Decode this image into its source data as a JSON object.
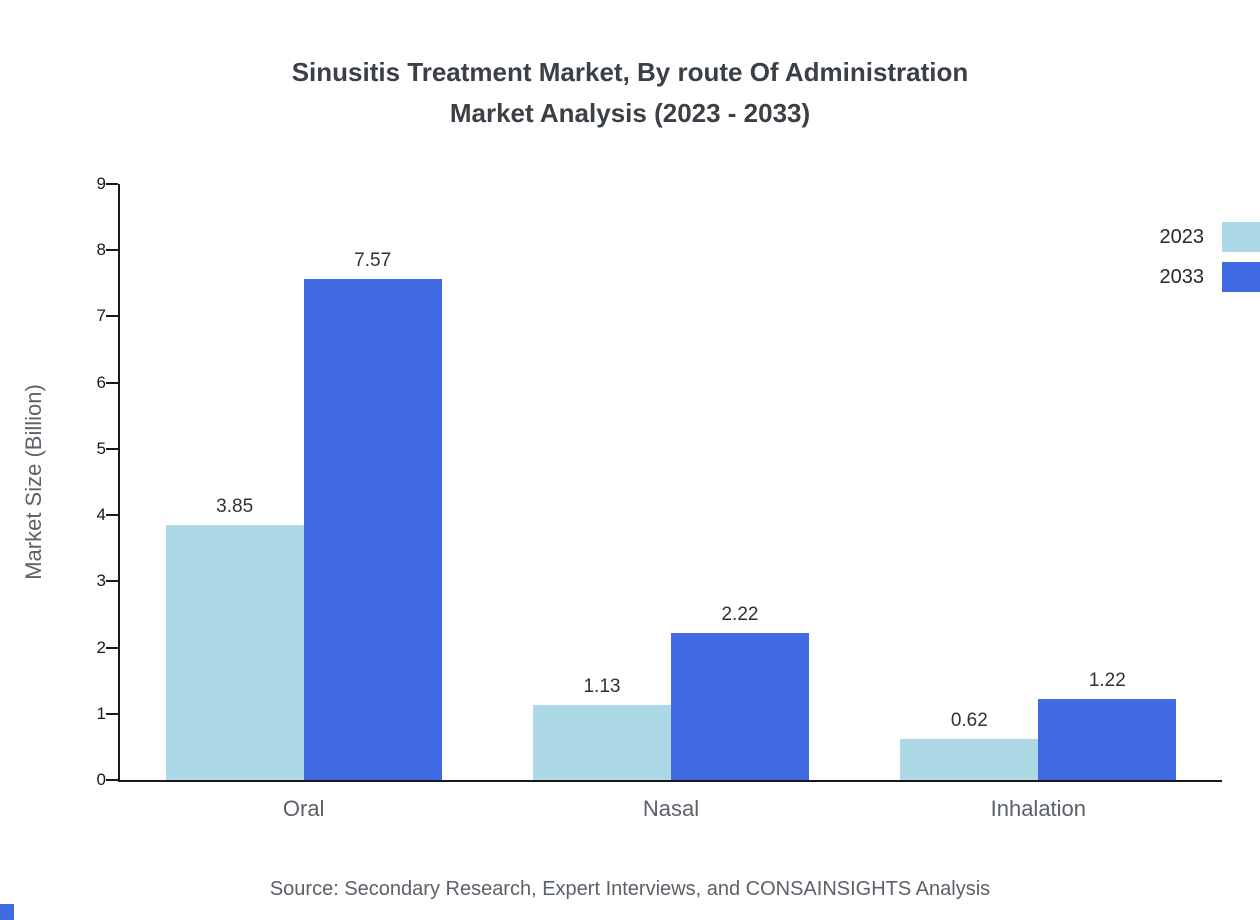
{
  "title": {
    "line1": "Sinusitis Treatment Market, By route Of Administration",
    "line2": "Market Analysis (2023 - 2033)"
  },
  "source": "Source: Secondary Research, Expert Interviews, and CONSAINSIGHTS Analysis",
  "accent_color": "#4169E1",
  "chart_data": {
    "type": "bar",
    "categories": [
      "Oral",
      "Nasal",
      "Inhalation"
    ],
    "series": [
      {
        "name": "2023",
        "color": "#ADD8E6",
        "values": [
          3.85,
          1.13,
          0.62
        ]
      },
      {
        "name": "2033",
        "color": "#4169E1",
        "values": [
          7.57,
          2.22,
          1.22
        ]
      }
    ],
    "title": "Sinusitis Treatment Market, By route Of Administration Market Analysis (2023 - 2033)",
    "xlabel": "",
    "ylabel": "Market Size (Billion)",
    "ylim": [
      0,
      9
    ],
    "yticks": [
      0,
      1,
      2,
      3,
      4,
      5,
      6,
      7,
      8,
      9
    ],
    "grid": false,
    "legend_position": "top-right",
    "value_labels": true
  }
}
